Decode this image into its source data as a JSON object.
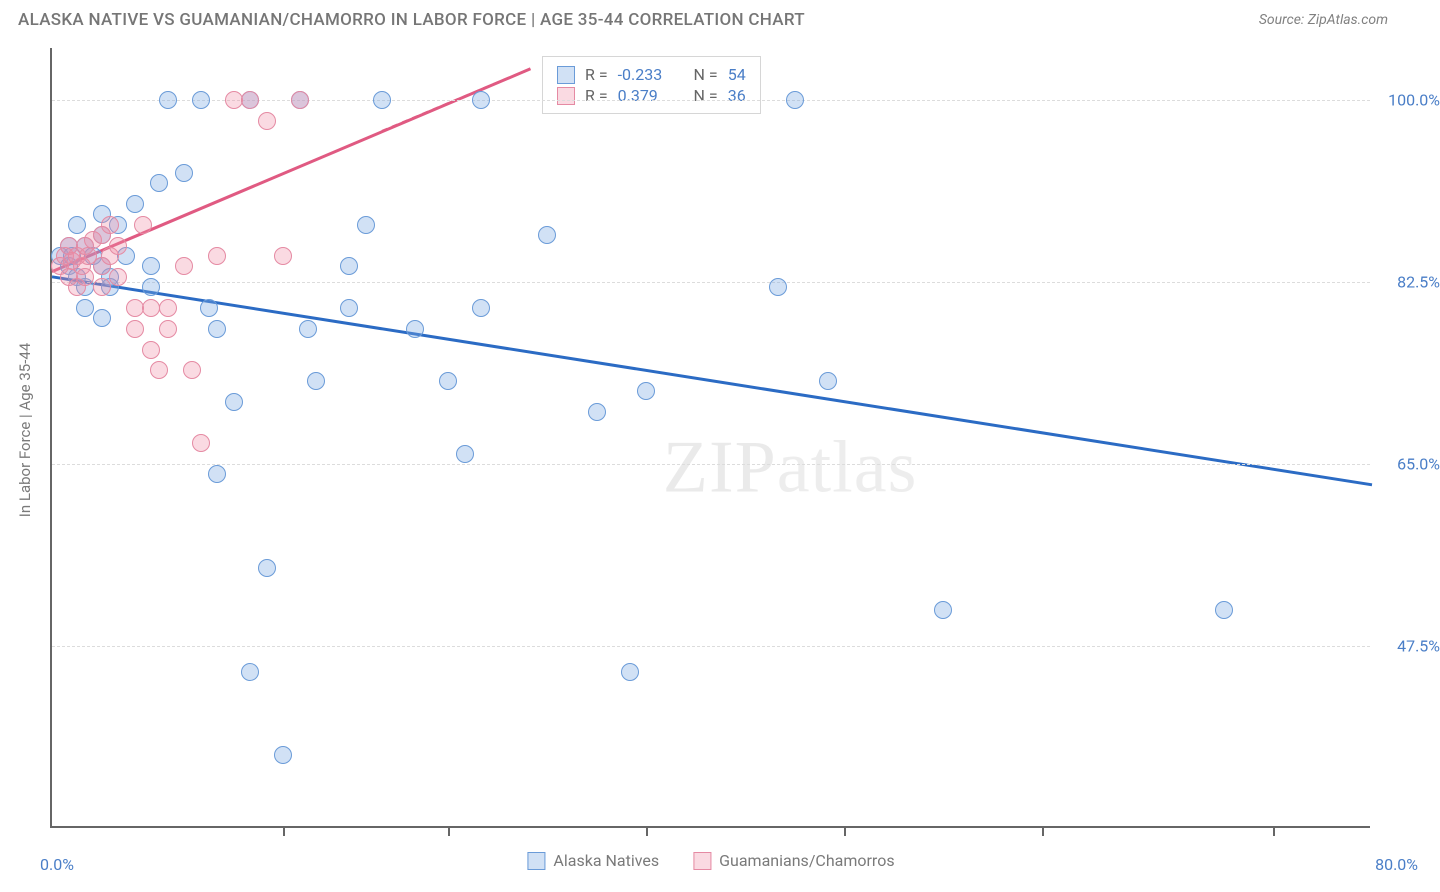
{
  "title": "ALASKA NATIVE VS GUAMANIAN/CHAMORRO IN LABOR FORCE | AGE 35-44 CORRELATION CHART",
  "source": "Source: ZipAtlas.com",
  "ylabel": "In Labor Force | Age 35-44",
  "watermark_a": "ZIP",
  "watermark_b": "atlas",
  "chart": {
    "type": "scatter",
    "xlim": [
      0,
      80
    ],
    "ylim": [
      30,
      105
    ],
    "y_ticks": [
      47.5,
      65.0,
      82.5,
      100.0
    ],
    "y_tick_labels": [
      "47.5%",
      "65.0%",
      "82.5%",
      "100.0%"
    ],
    "x_tick_labels": [
      "0.0%",
      "80.0%"
    ],
    "x_gridlines_at": [
      14,
      24,
      36,
      48,
      60,
      74
    ],
    "background_color": "#ffffff",
    "grid_color": "#dcdcdc",
    "axis_color": "#666666",
    "marker_radius": 9,
    "marker_border_width": 1.2,
    "series": [
      {
        "name": "Alaska Natives",
        "fill": "rgba(122,168,225,0.35)",
        "stroke": "#6a9bd8",
        "line_color": "#2b6bc4",
        "trend": {
          "x1": 0,
          "y1": 83,
          "x2": 80,
          "y2": 63
        },
        "r": -0.233,
        "n": 54,
        "points": [
          [
            0.5,
            85
          ],
          [
            1,
            84
          ],
          [
            1,
            86
          ],
          [
            1.5,
            83
          ],
          [
            1.5,
            88
          ],
          [
            2,
            86
          ],
          [
            2,
            82
          ],
          [
            2,
            80
          ],
          [
            2.5,
            85
          ],
          [
            3,
            84
          ],
          [
            3,
            87
          ],
          [
            3,
            89
          ],
          [
            3.5,
            83
          ],
          [
            4,
            88
          ],
          [
            5,
            90
          ],
          [
            6,
            84
          ],
          [
            7,
            100
          ],
          [
            8,
            93
          ],
          [
            9,
            100
          ],
          [
            9.5,
            80
          ],
          [
            10,
            64
          ],
          [
            10,
            78
          ],
          [
            11,
            71
          ],
          [
            12,
            100
          ],
          [
            12,
            45
          ],
          [
            13,
            55
          ],
          [
            14,
            37
          ],
          [
            15,
            100
          ],
          [
            15.5,
            78
          ],
          [
            16,
            73
          ],
          [
            18,
            80
          ],
          [
            18,
            84
          ],
          [
            19,
            88
          ],
          [
            20,
            100
          ],
          [
            22,
            78
          ],
          [
            24,
            73
          ],
          [
            25,
            66
          ],
          [
            26,
            100
          ],
          [
            26,
            80
          ],
          [
            30,
            87
          ],
          [
            33,
            70
          ],
          [
            35,
            45
          ],
          [
            36,
            72
          ],
          [
            44,
            82
          ],
          [
            45,
            100
          ],
          [
            47,
            73
          ],
          [
            54,
            51
          ],
          [
            71,
            51
          ],
          [
            3,
            79
          ],
          [
            3.5,
            82
          ],
          [
            6,
            82
          ],
          [
            6.5,
            92
          ],
          [
            4.5,
            85
          ],
          [
            1.2,
            85
          ]
        ]
      },
      {
        "name": "Guamanians/Chamorros",
        "fill": "rgba(238,140,164,0.32)",
        "stroke": "#e58aa3",
        "line_color": "#e05a82",
        "trend": {
          "x1": 0,
          "y1": 83.5,
          "x2": 29,
          "y2": 103
        },
        "trend_dash": {
          "x1": 20,
          "y1": 97,
          "x2": 29,
          "y2": 103
        },
        "r": 0.379,
        "n": 36,
        "points": [
          [
            0.5,
            84
          ],
          [
            0.8,
            85
          ],
          [
            1,
            86
          ],
          [
            1,
            83
          ],
          [
            1.2,
            84.5
          ],
          [
            1.5,
            85
          ],
          [
            1.5,
            82
          ],
          [
            1.8,
            84
          ],
          [
            2,
            86
          ],
          [
            2,
            83
          ],
          [
            2.2,
            85
          ],
          [
            2.5,
            86.5
          ],
          [
            3,
            84
          ],
          [
            3,
            87
          ],
          [
            3,
            82
          ],
          [
            3.5,
            88
          ],
          [
            3.5,
            85
          ],
          [
            4,
            86
          ],
          [
            4,
            83
          ],
          [
            5,
            80
          ],
          [
            5,
            78
          ],
          [
            5.5,
            88
          ],
          [
            6,
            76
          ],
          [
            6,
            80
          ],
          [
            6.5,
            74
          ],
          [
            7,
            78
          ],
          [
            7,
            80
          ],
          [
            8,
            84
          ],
          [
            8.5,
            74
          ],
          [
            9,
            67
          ],
          [
            10,
            85
          ],
          [
            11,
            100
          ],
          [
            12,
            100
          ],
          [
            13,
            98
          ],
          [
            14,
            85
          ],
          [
            15,
            100
          ]
        ]
      }
    ]
  },
  "legend_top": [
    {
      "swatch_fill": "rgba(122,168,225,0.35)",
      "swatch_stroke": "#6a9bd8",
      "r": "-0.233",
      "n": "54"
    },
    {
      "swatch_fill": "rgba(238,140,164,0.32)",
      "swatch_stroke": "#e58aa3",
      "r": "0.379",
      "n": "36"
    }
  ],
  "legend_bottom": [
    {
      "swatch_fill": "rgba(122,168,225,0.35)",
      "swatch_stroke": "#6a9bd8",
      "label": "Alaska Natives"
    },
    {
      "swatch_fill": "rgba(238,140,164,0.32)",
      "swatch_stroke": "#e58aa3",
      "label": "Guamanians/Chamorros"
    }
  ]
}
